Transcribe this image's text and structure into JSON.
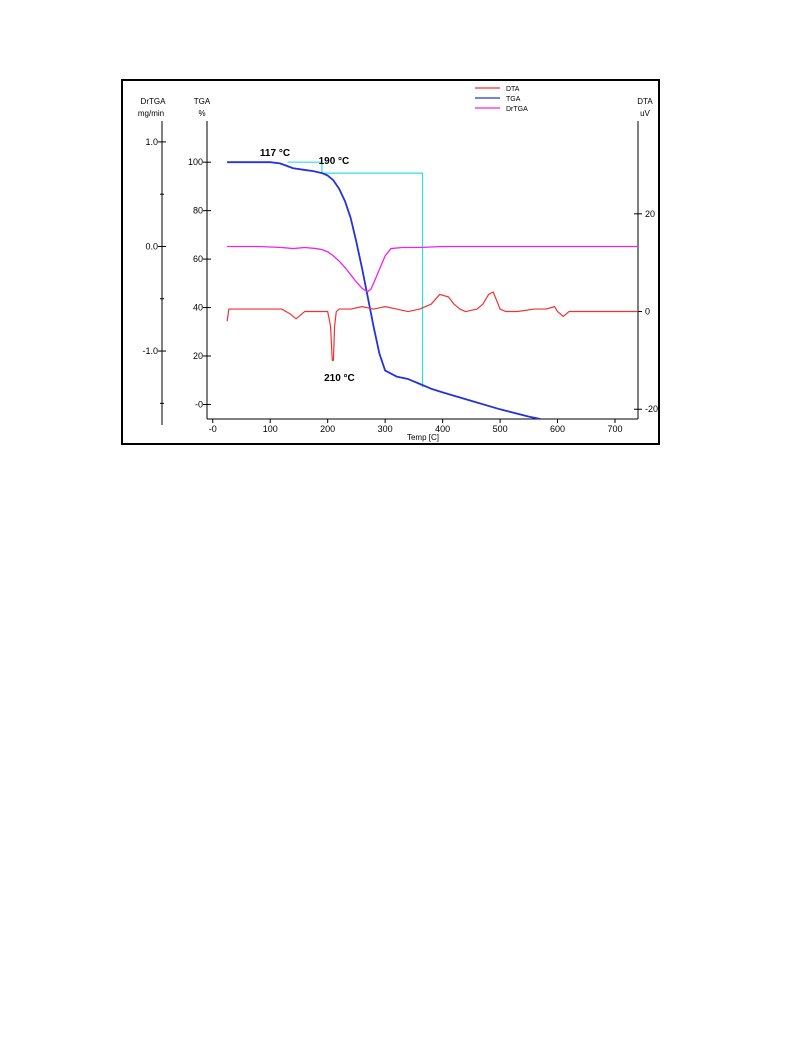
{
  "chart_data": {
    "type": "line",
    "x_axis": {
      "label": "Temp  [C]",
      "range": [
        -10,
        740
      ],
      "ticks": [
        0,
        100,
        200,
        300,
        400,
        500,
        600,
        700
      ],
      "tick_labels": [
        "-0",
        "100",
        "200",
        "300",
        "400",
        "500",
        "600",
        "700"
      ]
    },
    "axes": {
      "drtga": {
        "title": "DrTGA",
        "unit": "mg/min",
        "range": [
          -1.65,
          1.2
        ],
        "ticks": [
          1.0,
          0.0,
          -1.0
        ],
        "tick_labels": [
          "1.0",
          "0.0",
          "-1.0"
        ]
      },
      "tga": {
        "title": "TGA",
        "unit": "%",
        "range": [
          -6,
          117
        ],
        "ticks": [
          100,
          80,
          60,
          40,
          20,
          0
        ],
        "tick_labels": [
          "100",
          "80",
          "60",
          "40",
          "20",
          "-0"
        ]
      },
      "dta": {
        "title": "DTA",
        "unit": "uV",
        "range": [
          -22,
          39
        ],
        "ticks": [
          20,
          0,
          -20
        ],
        "tick_labels": [
          "20",
          "0",
          "-20"
        ]
      }
    },
    "legend": {
      "position": "top-center",
      "entries": [
        "DTA",
        "TGA",
        "DrTGA"
      ]
    },
    "colors": {
      "DTA": "#ee3333",
      "TGA": "#2233dd",
      "DrTGA": "#ee22ee",
      "guide": "#33dddd"
    },
    "series": [
      {
        "name": "TGA",
        "axis": "tga",
        "x": [
          25,
          60,
          100,
          117,
          140,
          160,
          175,
          190,
          200,
          210,
          220,
          230,
          240,
          250,
          260,
          270,
          280,
          290,
          300,
          320,
          340,
          360,
          380,
          400,
          450,
          500,
          550,
          570
        ],
        "y": [
          100,
          100,
          100,
          99.5,
          97.5,
          96.8,
          96.3,
          95.5,
          94.5,
          92.5,
          89,
          84,
          77,
          67,
          56,
          44,
          32,
          21,
          14,
          11.5,
          10.5,
          8.5,
          6.5,
          5,
          1.5,
          -2,
          -5,
          -6
        ]
      },
      {
        "name": "DrTGA",
        "axis": "drtga",
        "x": [
          25,
          80,
          120,
          140,
          160,
          180,
          190,
          200,
          210,
          220,
          230,
          240,
          250,
          260,
          265,
          270,
          275,
          280,
          290,
          300,
          310,
          330,
          360,
          400,
          500,
          600,
          700,
          740
        ],
        "y": [
          0.0,
          0.0,
          -0.01,
          -0.02,
          -0.01,
          -0.02,
          -0.03,
          -0.05,
          -0.09,
          -0.14,
          -0.2,
          -0.27,
          -0.34,
          -0.4,
          -0.42,
          -0.43,
          -0.41,
          -0.35,
          -0.22,
          -0.09,
          -0.02,
          -0.01,
          -0.01,
          0.0,
          0.0,
          0.0,
          0.0,
          0.0
        ]
      },
      {
        "name": "DTA",
        "axis": "dta",
        "x": [
          25,
          28,
          35,
          45,
          60,
          80,
          100,
          120,
          135,
          145,
          160,
          180,
          195,
          200,
          205,
          208,
          210,
          212,
          215,
          220,
          240,
          260,
          280,
          300,
          320,
          340,
          360,
          380,
          395,
          410,
          420,
          430,
          440,
          460,
          470,
          480,
          488,
          495,
          500,
          510,
          530,
          560,
          580,
          595,
          600,
          605,
          610,
          615,
          620,
          650,
          700,
          740
        ],
        "y": [
          -2,
          0.5,
          0.5,
          0.5,
          0.5,
          0.5,
          0.5,
          0.5,
          -0.5,
          -1.5,
          0,
          0,
          0,
          0,
          -3,
          -10,
          -10,
          -3,
          0,
          0.5,
          0.5,
          1,
          0.5,
          1,
          0.5,
          0,
          0.5,
          1.5,
          3.5,
          3,
          1.5,
          0.5,
          0,
          0.5,
          1.5,
          3.5,
          4,
          2,
          0.5,
          0,
          0,
          0.5,
          0.5,
          1,
          0,
          -0.5,
          -1,
          -0.5,
          0,
          0,
          0,
          0
        ]
      }
    ],
    "annotations": [
      {
        "text": "117 °C",
        "x": 117,
        "y": 100
      },
      {
        "text": "190 °C",
        "x": 190,
        "y": 98
      },
      {
        "text": "210 °C",
        "x": 210
      }
    ],
    "guide_lines": [
      {
        "x": [
          130,
          190,
          190,
          365,
          365
        ],
        "y": [
          100,
          100,
          95.5,
          95.5,
          7
        ]
      }
    ]
  }
}
